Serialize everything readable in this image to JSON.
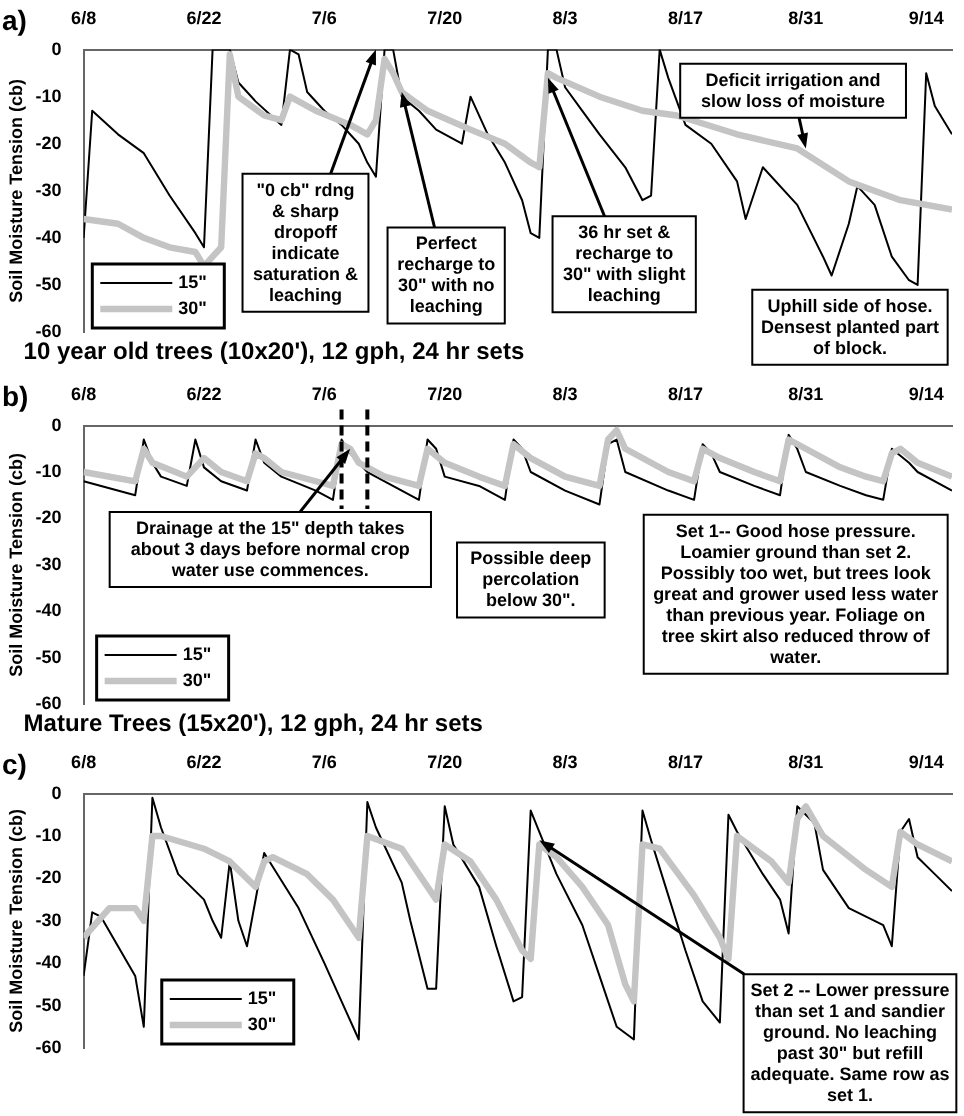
{
  "chart_data": [
    {
      "type": "line",
      "title": "a)",
      "subtitle": "10 year old trees (10x20'), 12 gph, 24 hr sets",
      "ylabel": "Soil Moisture Tension (cb)",
      "xlim": [
        "--06-08",
        "--09-17"
      ],
      "xticks": [
        {
          "value": "--06-08",
          "label": "6/8"
        },
        {
          "value": "--06-22",
          "label": "6/22"
        },
        {
          "value": "--07-06",
          "label": "7/6"
        },
        {
          "value": "--07-20",
          "label": "7/20"
        },
        {
          "value": "--08-03",
          "label": "8/3"
        },
        {
          "value": "--08-17",
          "label": "8/17"
        },
        {
          "value": "--08-31",
          "label": "8/31"
        },
        {
          "value": "--09-14",
          "label": "9/14"
        }
      ],
      "ylim": [
        -60,
        0
      ],
      "yticks": [
        0,
        -10,
        -20,
        -30,
        -40,
        -50,
        -60
      ],
      "grid": false,
      "legend": "bottom left",
      "marker": "none",
      "series": [
        {
          "name": "15\"",
          "color": "#000000",
          "x": [
            "--06-08",
            "--06-09",
            "--06-12",
            "--06-15",
            "--06-18",
            "--06-21",
            "--06-22",
            "--06-23",
            "--06-25",
            "--06-26",
            "--06-28",
            "--07-01",
            "--07-02",
            "--07-03",
            "--07-04",
            "--07-06",
            "--07-08",
            "--07-10",
            "--07-11",
            "--07-12",
            "--07-13",
            "--07-14",
            "--07-15",
            "--07-17",
            "--07-19",
            "--07-22",
            "--07-23",
            "--07-25",
            "--07-27",
            "--07-29",
            "--07-30",
            "--07-31",
            "--08-01",
            "--08-02",
            "--08-03",
            "--08-05",
            "--08-07",
            "--08-10",
            "--08-12",
            "--08-13",
            "--08-14",
            "--08-15",
            "--08-17",
            "--08-20",
            "--08-23",
            "--08-24",
            "--08-26",
            "--08-30",
            "--09-02",
            "--09-03",
            "--09-05",
            "--09-06",
            "--09-08",
            "--09-10",
            "--09-12",
            "--09-13",
            "--09-14",
            "--09-15",
            "--09-17"
          ],
          "values": [
            -40,
            -13,
            -18,
            -22,
            -31,
            -39,
            -42,
            0,
            0,
            -7,
            -11,
            -16,
            0,
            -1,
            -9,
            -13,
            -16,
            -20,
            -24,
            -27,
            0,
            0,
            -10,
            -13,
            -17,
            -20,
            -10,
            -18,
            -24,
            -32,
            -39,
            -40,
            0,
            0,
            -8,
            -13,
            -18,
            -25,
            -32,
            -31,
            0,
            -6,
            -16,
            -20,
            -28,
            -36,
            -25,
            -33,
            -44,
            -48,
            -37,
            -29,
            -33,
            -44,
            -49,
            -50,
            -5,
            -12,
            -18
          ]
        },
        {
          "name": "30\"",
          "color": "#c4c4c4",
          "x": [
            "--06-08",
            "--06-12",
            "--06-15",
            "--06-18",
            "--06-21",
            "--06-22",
            "--06-24",
            "--06-25",
            "--06-26",
            "--06-29",
            "--07-01",
            "--07-02",
            "--07-05",
            "--07-09",
            "--07-11",
            "--07-12",
            "--07-13",
            "--07-14",
            "--07-15",
            "--07-18",
            "--07-23",
            "--07-27",
            "--07-30",
            "--07-31",
            "--08-01",
            "--08-02",
            "--08-07",
            "--08-12",
            "--08-16",
            "--08-23",
            "--08-30",
            "--09-05",
            "--09-11",
            "--09-17"
          ],
          "values": [
            -36,
            -37,
            -40,
            -42,
            -43,
            -46,
            -42,
            -1,
            -10,
            -14,
            -15,
            -10,
            -13,
            -16,
            -18,
            -15,
            -2,
            -5,
            -9,
            -13,
            -17,
            -20,
            -24,
            -25,
            -5,
            -6,
            -10,
            -13,
            -14,
            -18,
            -21,
            -28,
            -32,
            -34
          ]
        }
      ],
      "annotations": [
        {
          "text": "\"0 cb\" rdng & sharp dropoff indicate saturation & leaching",
          "x": "--07-12",
          "y": 0
        },
        {
          "text": "Perfect recharge to 30\" with no leaching",
          "x": "--07-15",
          "y": -9
        },
        {
          "text": "36 hr set & recharge to 30\" with slight leaching",
          "x": "--08-01",
          "y": -6
        },
        {
          "text": "Deficit irrigation and slow loss of moisture",
          "x": "--08-31",
          "y": -21
        },
        "Uphill side of hose. Densest planted part of block."
      ]
    },
    {
      "type": "line",
      "title": "b)",
      "subtitle": "Mature Trees (15x20'), 12 gph, 24 hr sets",
      "ylabel": "Soil Moisture Tension (cb)",
      "xlim": [
        "--06-08",
        "--09-17"
      ],
      "xticks": [
        {
          "value": "--06-08",
          "label": "6/8"
        },
        {
          "value": "--06-22",
          "label": "6/22"
        },
        {
          "value": "--07-06",
          "label": "7/6"
        },
        {
          "value": "--07-20",
          "label": "7/20"
        },
        {
          "value": "--08-03",
          "label": "8/3"
        },
        {
          "value": "--08-17",
          "label": "8/17"
        },
        {
          "value": "--08-31",
          "label": "8/31"
        },
        {
          "value": "--09-14",
          "label": "9/14"
        }
      ],
      "ylim": [
        -60,
        0
      ],
      "yticks": [
        0,
        -10,
        -20,
        -30,
        -40,
        -50,
        -60
      ],
      "grid": false,
      "legend": "bottom left",
      "marker": "none",
      "series": [
        {
          "name": "15\"",
          "color": "#000000",
          "x": [
            "--06-08",
            "--06-14",
            "--06-15",
            "--06-16",
            "--06-17",
            "--06-20",
            "--06-21",
            "--06-22",
            "--06-24",
            "--06-27",
            "--06-28",
            "--06-29",
            "--07-01",
            "--07-05",
            "--07-07",
            "--07-08",
            "--07-09",
            "--07-11",
            "--07-13",
            "--07-17",
            "--07-18",
            "--07-19",
            "--07-20",
            "--07-24",
            "--07-27",
            "--07-28",
            "--07-29",
            "--07-30",
            "--08-03",
            "--08-07",
            "--08-08",
            "--08-09",
            "--08-10",
            "--08-15",
            "--08-18",
            "--08-19",
            "--08-20",
            "--08-21",
            "--08-25",
            "--08-28",
            "--08-29",
            "--08-30",
            "--08-31",
            "--09-04",
            "--09-07",
            "--09-09",
            "--09-10",
            "--09-12",
            "--09-13",
            "--09-17"
          ],
          "values": [
            -12,
            -15,
            -3,
            -8,
            -11,
            -13,
            -3,
            -9,
            -12,
            -14,
            -3,
            -8,
            -11,
            -14,
            -16,
            -3,
            -6,
            -10,
            -12,
            -16,
            -3,
            -5,
            -11,
            -13,
            -16,
            -3,
            -5,
            -10,
            -14,
            -17,
            -4,
            -3,
            -10,
            -14,
            -16,
            -4,
            -6,
            -10,
            -13,
            -15,
            -2,
            -5,
            -10,
            -13,
            -15,
            -16,
            -5,
            -8,
            -10,
            -14
          ]
        },
        {
          "name": "30\"",
          "color": "#c4c4c4",
          "x": [
            "--06-08",
            "--06-14",
            "--06-15",
            "--06-16",
            "--06-20",
            "--06-21",
            "--06-22",
            "--06-24",
            "--06-27",
            "--06-28",
            "--06-29",
            "--07-01",
            "--07-05",
            "--07-07",
            "--07-08",
            "--07-09",
            "--07-10",
            "--07-13",
            "--07-17",
            "--07-18",
            "--07-20",
            "--07-24",
            "--07-27",
            "--07-28",
            "--07-30",
            "--08-03",
            "--08-07",
            "--08-08",
            "--08-09",
            "--08-10",
            "--08-15",
            "--08-18",
            "--08-19",
            "--08-21",
            "--08-25",
            "--08-28",
            "--08-29",
            "--08-31",
            "--09-04",
            "--09-07",
            "--09-09",
            "--09-10",
            "--09-11",
            "--09-13",
            "--09-17"
          ],
          "values": [
            -10,
            -12,
            -5,
            -8,
            -11,
            -9,
            -7,
            -10,
            -12,
            -6,
            -7,
            -10,
            -12,
            -13,
            -4,
            -5,
            -8,
            -11,
            -13,
            -5,
            -8,
            -11,
            -13,
            -4,
            -7,
            -11,
            -13,
            -3,
            -1,
            -5,
            -10,
            -12,
            -5,
            -7,
            -10,
            -12,
            -3,
            -5,
            -9,
            -11,
            -12,
            -6,
            -5,
            -8,
            -11
          ]
        }
      ],
      "ref_lines": [
        {
          "axis": "x",
          "value": "--07-08",
          "color": "#000000",
          "line_style": "dashed"
        },
        {
          "axis": "x",
          "value": "--07-11",
          "color": "#000000",
          "line_style": "dashed"
        }
      ],
      "annotations": [
        {
          "text": "Drainage at the 15\" depth takes about 3 days before normal crop water use commences.",
          "x": "--07-09",
          "y": -5
        },
        "Possible deep percolation below 30\".",
        "Set 1-- Good hose pressure. Loamier ground than set 2. Possibly too wet, but trees look great and grower used less water than previous year. Foliage on tree skirt also reduced throw of water."
      ]
    },
    {
      "type": "line",
      "title": "c)",
      "ylabel": "Soil Moisture Tension (cb)",
      "xlim": [
        "--06-08",
        "--09-17"
      ],
      "xticks": [
        {
          "value": "--06-08",
          "label": "6/8"
        },
        {
          "value": "--06-22",
          "label": "6/22"
        },
        {
          "value": "--07-06",
          "label": "7/6"
        },
        {
          "value": "--07-20",
          "label": "7/20"
        },
        {
          "value": "--08-03",
          "label": "8/3"
        },
        {
          "value": "--08-17",
          "label": "8/17"
        },
        {
          "value": "--08-31",
          "label": "8/31"
        },
        {
          "value": "--09-14",
          "label": "9/14"
        }
      ],
      "ylim": [
        -60,
        0
      ],
      "yticks": [
        0,
        -10,
        -20,
        -30,
        -40,
        -50,
        -60
      ],
      "grid": false,
      "legend": "bottom left",
      "marker": "none",
      "series": [
        {
          "name": "15\"",
          "color": "#000000",
          "x": [
            "--06-08",
            "--06-09",
            "--06-10",
            "--06-12",
            "--06-14",
            "--06-15",
            "--06-16",
            "--06-17",
            "--06-19",
            "--06-22",
            "--06-23",
            "--06-24",
            "--06-25",
            "--06-26",
            "--06-27",
            "--06-29",
            "--07-03",
            "--07-06",
            "--07-08",
            "--07-10",
            "--07-11",
            "--07-12",
            "--07-15",
            "--07-16",
            "--07-18",
            "--07-19",
            "--07-20",
            "--07-21",
            "--07-24",
            "--07-26",
            "--07-28",
            "--07-29",
            "--07-30",
            "--07-31",
            "--08-02",
            "--08-05",
            "--08-07",
            "--08-09",
            "--08-11",
            "--08-12",
            "--08-13",
            "--08-15",
            "--08-17",
            "--08-19",
            "--08-21",
            "--08-22",
            "--08-23",
            "--08-26",
            "--08-28",
            "--08-29",
            "--08-30",
            "--09-01",
            "--09-02",
            "--09-05",
            "--09-09",
            "--09-10",
            "--09-11",
            "--09-12",
            "--09-13",
            "--09-15",
            "--09-17"
          ],
          "values": [
            -43,
            -28,
            -29,
            -36,
            -43,
            -55,
            -1,
            -8,
            -19,
            -25,
            -30,
            -34,
            -16,
            -30,
            -36,
            -14,
            -27,
            -40,
            -49,
            -58,
            -2,
            -8,
            -21,
            -30,
            -46,
            -46,
            -3,
            -12,
            -22,
            -36,
            -49,
            -48,
            -4,
            -9,
            -19,
            -31,
            -43,
            -55,
            -58,
            -4,
            -11,
            -24,
            -37,
            -49,
            -54,
            -5,
            -9,
            -19,
            -25,
            -33,
            -3,
            -7,
            -18,
            -27,
            -31,
            -36,
            -9,
            -6,
            -15,
            -19,
            -23
          ]
        },
        {
          "name": "30\"",
          "color": "#c4c4c4",
          "x": [
            "--06-08",
            "--06-11",
            "--06-14",
            "--06-15",
            "--06-16",
            "--06-17",
            "--06-22",
            "--06-25",
            "--06-28",
            "--06-29",
            "--06-30",
            "--07-04",
            "--07-07",
            "--07-09",
            "--07-10",
            "--07-11",
            "--07-15",
            "--07-19",
            "--07-20",
            "--07-23",
            "--07-26",
            "--07-29",
            "--07-30",
            "--07-31",
            "--08-02",
            "--08-05",
            "--08-08",
            "--08-10",
            "--08-11",
            "--08-12",
            "--08-14",
            "--08-18",
            "--08-21",
            "--08-22",
            "--08-23",
            "--08-27",
            "--08-29",
            "--08-30",
            "--08-31",
            "--09-02",
            "--09-07",
            "--09-10",
            "--09-11",
            "--09-13",
            "--09-17"
          ],
          "values": [
            -34,
            -27,
            -27,
            -30,
            -10,
            -10,
            -13,
            -16,
            -22,
            -16,
            -15,
            -19,
            -25,
            -31,
            -34,
            -10,
            -13,
            -25,
            -12,
            -16,
            -25,
            -37,
            -39,
            -12,
            -15,
            -22,
            -31,
            -45,
            -49,
            -12,
            -13,
            -24,
            -34,
            -39,
            -10,
            -16,
            -21,
            -6,
            -3,
            -10,
            -18,
            -22,
            -9,
            -12,
            -16
          ]
        }
      ],
      "annotations": [
        {
          "text": "Set 2 -- Lower pressure than set 1 and sandier ground. No leaching past 30\" but refill adequate. Same row as set 1.",
          "x": "--07-31",
          "y": -11
        }
      ]
    }
  ]
}
